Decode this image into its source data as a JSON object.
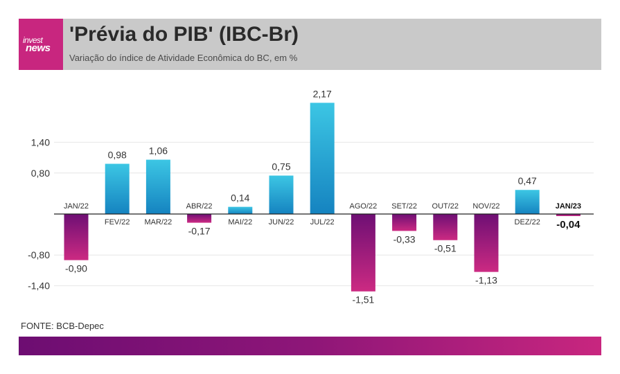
{
  "header": {
    "logo_line1": "invest",
    "logo_line2": "news",
    "title": "'Prévia do PIB' (IBC-Br)",
    "subtitle": "Variação do índice de Atividade Econômica do BC, em %"
  },
  "source": "FONTE: BCB-Depec",
  "colors": {
    "positive_top": "#3cc6e4",
    "positive_bottom": "#1583c0",
    "negative_top": "#6e0f74",
    "negative_bottom": "#cc2a82",
    "grid": "#e6e6e6",
    "axis": "#222222"
  },
  "chart_data": {
    "type": "bar",
    "categories": [
      "JAN/22",
      "FEV/22",
      "MAR/22",
      "ABR/22",
      "MAI/22",
      "JUN/22",
      "JUL/22",
      "AGO/22",
      "SET/22",
      "OUT/22",
      "NOV/22",
      "DEZ/22",
      "JAN/23"
    ],
    "values": [
      -0.9,
      0.98,
      1.06,
      -0.17,
      0.14,
      0.75,
      2.17,
      -1.51,
      -0.33,
      -0.51,
      -1.13,
      0.47,
      -0.04
    ],
    "value_labels": [
      "-0,90",
      "0,98",
      "1,06",
      "-0,17",
      "0,14",
      "0,75",
      "2,17",
      "-1,51",
      "-0,33",
      "-0,51",
      "-1,13",
      "0,47",
      "-0,04"
    ],
    "y_ticks": [
      1.4,
      0.8,
      -0.8,
      -1.4
    ],
    "y_tick_labels": [
      "1,40",
      "0,80",
      "-0,80",
      "-1,40"
    ],
    "highlight_category": "JAN/23",
    "ylim": [
      -1.6,
      2.3
    ],
    "grid": true
  }
}
